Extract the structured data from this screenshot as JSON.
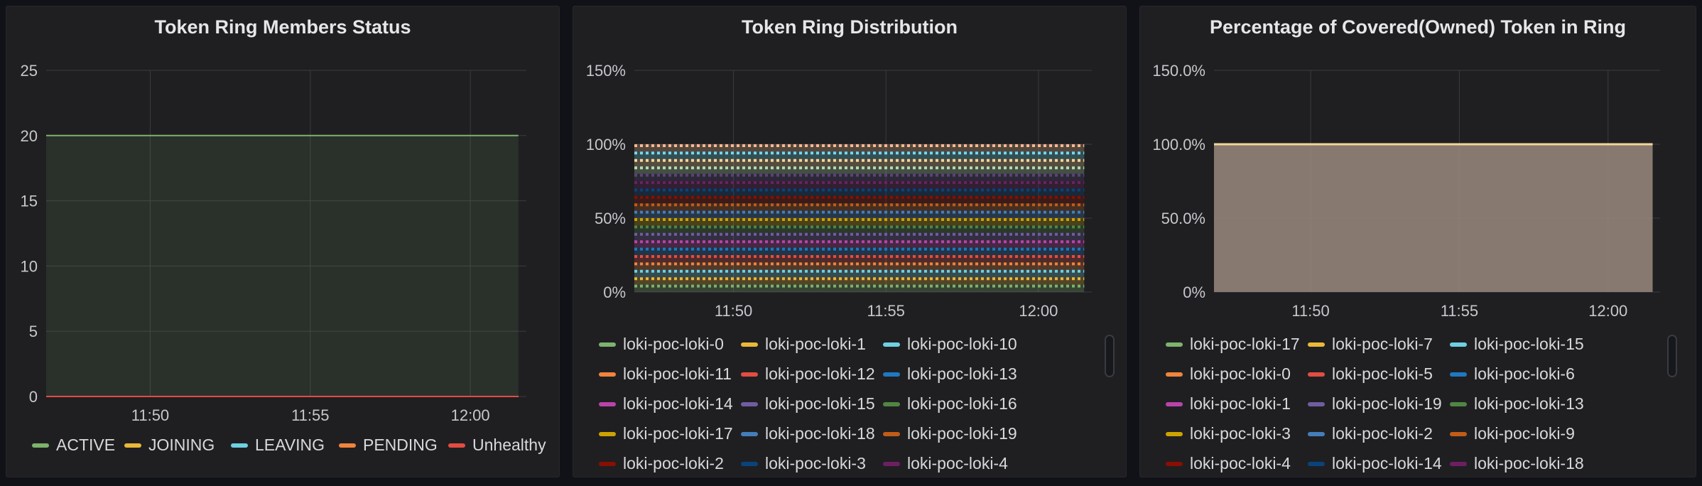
{
  "panels": [
    {
      "title": "Token Ring Members Status",
      "chart_data": {
        "type": "area",
        "x_ticks": [
          "11:50",
          "11:55",
          "12:00"
        ],
        "y_ticks": [
          "0",
          "5",
          "10",
          "15",
          "20",
          "25"
        ],
        "ylim": [
          0,
          25
        ],
        "xlim": [
          "11:46:45",
          "12:01:45"
        ],
        "grid": true,
        "legend_placement": "bottom",
        "series": [
          {
            "name": "ACTIVE",
            "color": "#7eb26d",
            "values": [
              20,
              20
            ]
          },
          {
            "name": "JOINING",
            "color": "#eab839",
            "values": [
              0,
              0
            ]
          },
          {
            "name": "LEAVING",
            "color": "#6ed0e0",
            "values": [
              0,
              0
            ]
          },
          {
            "name": "PENDING",
            "color": "#ef843c",
            "values": [
              0,
              0
            ]
          },
          {
            "name": "Unhealthy",
            "color": "#e24d42",
            "values": [
              0,
              0
            ]
          }
        ],
        "x": [
          "11:46:45",
          "12:01:30"
        ]
      }
    },
    {
      "title": "Token Ring Distribution",
      "chart_data": {
        "type": "area",
        "stacked": true,
        "x_ticks": [
          "11:50",
          "11:55",
          "12:00"
        ],
        "y_ticks": [
          "0%",
          "50%",
          "100%",
          "150%"
        ],
        "ylim": [
          0,
          150
        ],
        "total": 100,
        "grid": true,
        "legend_placement": "bottom",
        "series": [
          {
            "name": "loki-poc-loki-0",
            "color": "#7eb26d"
          },
          {
            "name": "loki-poc-loki-1",
            "color": "#eab839"
          },
          {
            "name": "loki-poc-loki-10",
            "color": "#6ed0e0"
          },
          {
            "name": "loki-poc-loki-11",
            "color": "#ef843c"
          },
          {
            "name": "loki-poc-loki-12",
            "color": "#e24d42"
          },
          {
            "name": "loki-poc-loki-13",
            "color": "#1f78c1"
          },
          {
            "name": "loki-poc-loki-14",
            "color": "#ba43a9"
          },
          {
            "name": "loki-poc-loki-15",
            "color": "#705da0"
          },
          {
            "name": "loki-poc-loki-16",
            "color": "#508642"
          },
          {
            "name": "loki-poc-loki-17",
            "color": "#cca300"
          },
          {
            "name": "loki-poc-loki-18",
            "color": "#447ebc"
          },
          {
            "name": "loki-poc-loki-19",
            "color": "#c15c17"
          },
          {
            "name": "loki-poc-loki-2",
            "color": "#890f02"
          },
          {
            "name": "loki-poc-loki-3",
            "color": "#0a437c"
          },
          {
            "name": "loki-poc-loki-4",
            "color": "#6d1f62"
          }
        ],
        "stack_colors": [
          "#7eb26d",
          "#eab839",
          "#6ed0e0",
          "#ef843c",
          "#e24d42",
          "#1f78c1",
          "#ba43a9",
          "#705da0",
          "#508642",
          "#cca300",
          "#447ebc",
          "#c15c17",
          "#890f02",
          "#0a437c",
          "#6d1f62",
          "#584477",
          "#b7dbab",
          "#f4d598",
          "#70dbed",
          "#f9ba8f"
        ]
      }
    },
    {
      "title": "Percentage of Covered(Owned) Token in Ring",
      "chart_data": {
        "type": "area",
        "x_ticks": [
          "11:50",
          "11:55",
          "12:00"
        ],
        "y_ticks": [
          "0%",
          "50.0%",
          "100.0%",
          "150.0%"
        ],
        "ylim": [
          0,
          150
        ],
        "value": 100,
        "grid": true,
        "legend_placement": "bottom",
        "series": [
          {
            "name": "loki-poc-loki-17",
            "color": "#7eb26d"
          },
          {
            "name": "loki-poc-loki-7",
            "color": "#eab839"
          },
          {
            "name": "loki-poc-loki-15",
            "color": "#6ed0e0"
          },
          {
            "name": "loki-poc-loki-0",
            "color": "#ef843c"
          },
          {
            "name": "loki-poc-loki-5",
            "color": "#e24d42"
          },
          {
            "name": "loki-poc-loki-6",
            "color": "#1f78c1"
          },
          {
            "name": "loki-poc-loki-1",
            "color": "#ba43a9"
          },
          {
            "name": "loki-poc-loki-19",
            "color": "#705da0"
          },
          {
            "name": "loki-poc-loki-13",
            "color": "#508642"
          },
          {
            "name": "loki-poc-loki-3",
            "color": "#cca300"
          },
          {
            "name": "loki-poc-loki-2",
            "color": "#447ebc"
          },
          {
            "name": "loki-poc-loki-9",
            "color": "#c15c17"
          },
          {
            "name": "loki-poc-loki-4",
            "color": "#890f02"
          },
          {
            "name": "loki-poc-loki-14",
            "color": "#0a437c"
          },
          {
            "name": "loki-poc-loki-18",
            "color": "#6d1f62"
          }
        ]
      }
    }
  ]
}
